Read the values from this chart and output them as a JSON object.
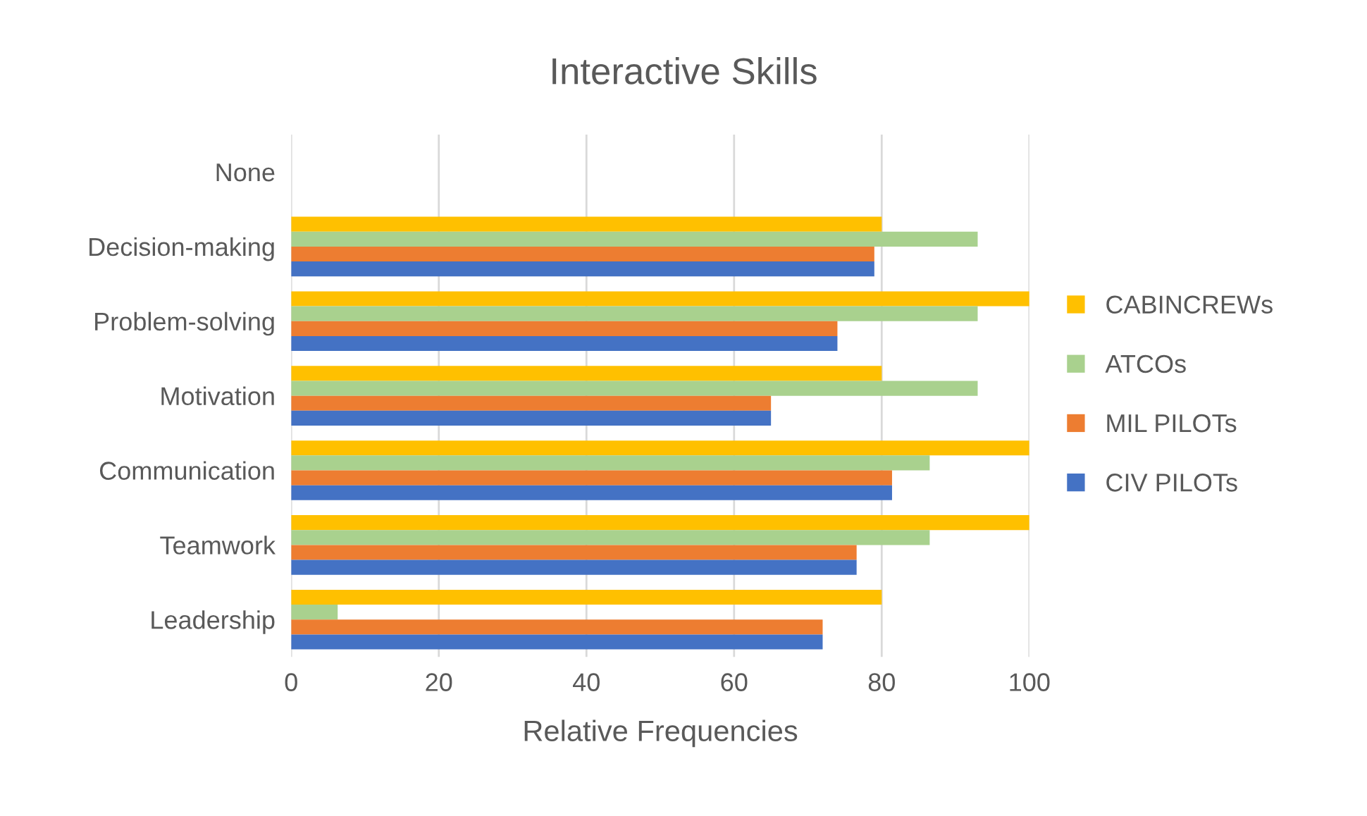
{
  "chart_data": {
    "type": "bar",
    "orientation": "horizontal",
    "title": "Interactive Skills",
    "xlabel": "Relative Frequencies",
    "categories": [
      "None",
      "Decision-making",
      "Problem-solving",
      "Motivation",
      "Communication",
      "Teamwork",
      "Leadership"
    ],
    "series": [
      {
        "name": "CABINCREWs",
        "color": "#ffc000",
        "values": [
          null,
          80,
          100,
          80,
          100,
          100,
          80
        ]
      },
      {
        "name": "ATCOs",
        "color": "#a9d18e",
        "values": [
          null,
          93,
          93,
          93,
          86.5,
          86.5,
          6.3
        ]
      },
      {
        "name": "MIL PILOTs",
        "color": "#ed7d31",
        "values": [
          null,
          79,
          74,
          65,
          81.4,
          76.6,
          72
        ]
      },
      {
        "name": "CIV PILOTs",
        "color": "#4472c4",
        "values": [
          null,
          79,
          74,
          65,
          81.4,
          76.6,
          72
        ]
      }
    ],
    "xlim": [
      0,
      100
    ],
    "xticks": [
      0,
      20,
      40,
      60,
      80,
      100
    ],
    "grid": "x",
    "legend": "right"
  }
}
